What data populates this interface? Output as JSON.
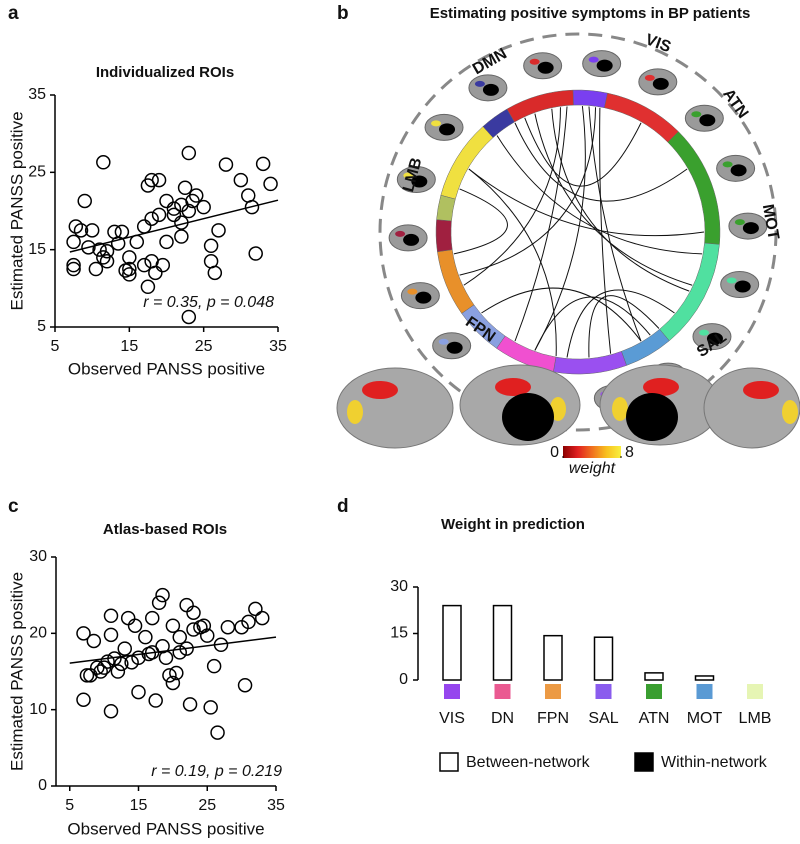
{
  "chart_data": [
    {
      "panel": "a",
      "type": "scatter",
      "title": "Individualized ROIs",
      "x_label": "Observed PANSS positive",
      "y_label": "Estimated PANSS positive",
      "annotation": "r = 0.35, p = 0.048",
      "x": [
        7.5,
        7.5,
        7.5,
        7.8,
        8.5,
        9,
        9.5,
        10,
        10.5,
        11,
        11.5,
        11.5,
        12,
        12,
        13,
        13.5,
        14,
        14.5,
        15,
        15,
        15,
        16,
        17,
        17,
        17.5,
        17.5,
        18,
        18,
        18,
        18.5,
        19,
        19,
        19.5,
        20,
        20,
        21,
        21,
        22,
        22,
        22,
        22.5,
        23,
        23,
        23,
        23.5,
        24,
        25,
        26,
        26,
        26.5,
        27,
        28,
        30,
        31,
        31.5,
        32,
        33,
        34
      ],
      "y": [
        12.5,
        13,
        16,
        18,
        17.5,
        21.3,
        15.3,
        17.5,
        12.5,
        15,
        26.3,
        14,
        14.8,
        13.5,
        17.3,
        15.8,
        17.3,
        12.3,
        11.8,
        12.5,
        14,
        16,
        13,
        18,
        10.2,
        23.3,
        19,
        13.5,
        24,
        12,
        24,
        19.5,
        13,
        16,
        21.3,
        20.3,
        19.5,
        18.5,
        16.7,
        20.8,
        23,
        27.5,
        20,
        6.3,
        21.3,
        22,
        20.5,
        13.5,
        15.5,
        12,
        17.5,
        26,
        24,
        22,
        20.5,
        14.5,
        26.1,
        23.5
      ],
      "fit": {
        "x": [
          7,
          35
        ],
        "y": [
          14.7,
          21.4
        ]
      },
      "xlim": [
        5,
        35
      ],
      "ylim": [
        5,
        35
      ],
      "xticks": [
        5,
        15,
        25,
        35
      ],
      "yticks": [
        5,
        15,
        25,
        35
      ],
      "color": "#000000"
    },
    {
      "panel": "b",
      "type": "connectogram",
      "title": "Estimating positive symptoms in BP patients",
      "networks": [
        "DMN",
        "VIS",
        "ATN",
        "MOT",
        "SAL",
        "FPN",
        "LMB"
      ],
      "colorbar": {
        "label": "weight",
        "clim": [
          0,
          8
        ],
        "ticks": [
          0,
          8
        ],
        "colors": [
          "#8b0000",
          "#e02020",
          "#f07020",
          "#f8c020",
          "#f8f040"
        ]
      }
    },
    {
      "panel": "c",
      "type": "scatter",
      "title": "Atlas-based ROIs",
      "x_label": "Observed PANSS positive",
      "y_label": "Estimated PANSS positive",
      "annotation": "r = 0.19, p = 0.219",
      "x": [
        7,
        7,
        7.5,
        8,
        8.5,
        9,
        9.5,
        10,
        10.5,
        11,
        11,
        11,
        11.5,
        12,
        12.5,
        13,
        13.5,
        14,
        14.5,
        15,
        15,
        16,
        16.5,
        17,
        17,
        17.5,
        18,
        18.5,
        18.5,
        19,
        19.5,
        20,
        20,
        20.5,
        21,
        21,
        22,
        22,
        22.5,
        23,
        23,
        24,
        24.5,
        25,
        25.5,
        26,
        26.5,
        27,
        28,
        30,
        30.5,
        31,
        32,
        33
      ],
      "y": [
        20,
        11.3,
        14.5,
        14.5,
        19,
        15.5,
        15,
        15.5,
        16.3,
        9.8,
        22.3,
        19.8,
        16.7,
        15,
        16,
        18,
        22,
        16.2,
        21,
        12.3,
        16.8,
        19.5,
        17.3,
        22,
        17.5,
        11.2,
        24,
        25,
        18.3,
        16.8,
        14.5,
        21,
        13.5,
        14.8,
        17.5,
        19.5,
        23.7,
        18,
        10.7,
        20.5,
        22.7,
        20.8,
        21,
        19.7,
        10.3,
        15.7,
        7,
        18.5,
        20.8,
        20.8,
        13.2,
        21.5,
        23.2,
        22
      ],
      "fit": {
        "x": [
          5,
          35
        ],
        "y": [
          16.1,
          19.5
        ]
      },
      "xlim": [
        3,
        35
      ],
      "ylim": [
        0,
        30
      ],
      "xticks": [
        5,
        15,
        25,
        35
      ],
      "yticks": [
        0,
        10,
        20,
        30
      ],
      "color": "#000000"
    },
    {
      "panel": "d",
      "type": "bar",
      "title": "Weight in prediction",
      "categories": [
        "VIS",
        "DN",
        "FPN",
        "SAL",
        "ATN",
        "MOT",
        "LMB"
      ],
      "category_colors": [
        "#9646ee",
        "#ea5a91",
        "#ec9a44",
        "#8a5cee",
        "#3a9e30",
        "#5a9ad4",
        "#e6f5b4"
      ],
      "series": [
        {
          "name": "Between-network",
          "color": "#ffffff",
          "values": [
            24,
            24,
            14.3,
            13.8,
            2.3,
            1.3,
            0
          ]
        },
        {
          "name": "Within-network",
          "color": "#000000",
          "values": [
            0,
            0,
            0,
            0,
            0,
            0,
            0
          ]
        }
      ],
      "ylim": [
        0,
        30
      ],
      "yticks": [
        0,
        15,
        30
      ]
    }
  ]
}
